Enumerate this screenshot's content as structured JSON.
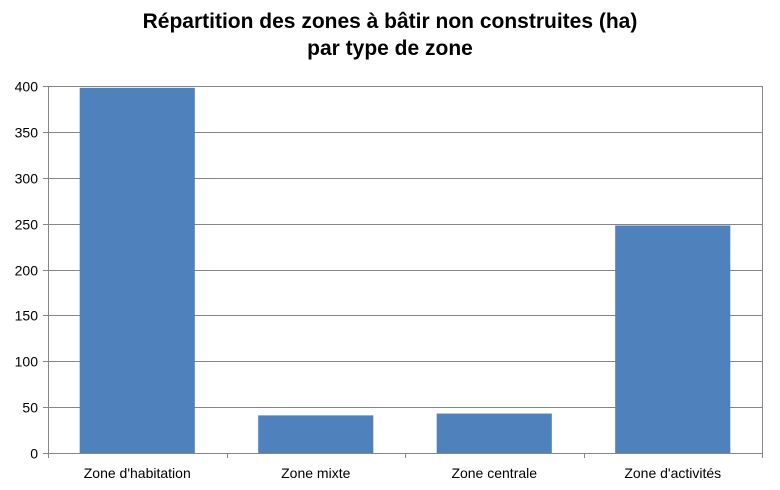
{
  "chart_data": {
    "type": "bar",
    "title_line1": "Répartition des zones à bâtir non construites  (ha)",
    "title_line2": "par type de zone",
    "xlabel": "",
    "ylabel": "",
    "categories": [
      "Zone d'habitation",
      "Zone mixte",
      "Zone centrale",
      "Zone d'activités"
    ],
    "values": [
      398,
      41,
      43,
      248
    ],
    "ylim": [
      0,
      400
    ],
    "yticks": [
      0,
      50,
      100,
      150,
      200,
      250,
      300,
      350,
      400
    ],
    "grid": true,
    "legend": "none",
    "colors": {
      "bar": "#4F81BD",
      "grid": "#868686",
      "axis": "#868686"
    }
  }
}
